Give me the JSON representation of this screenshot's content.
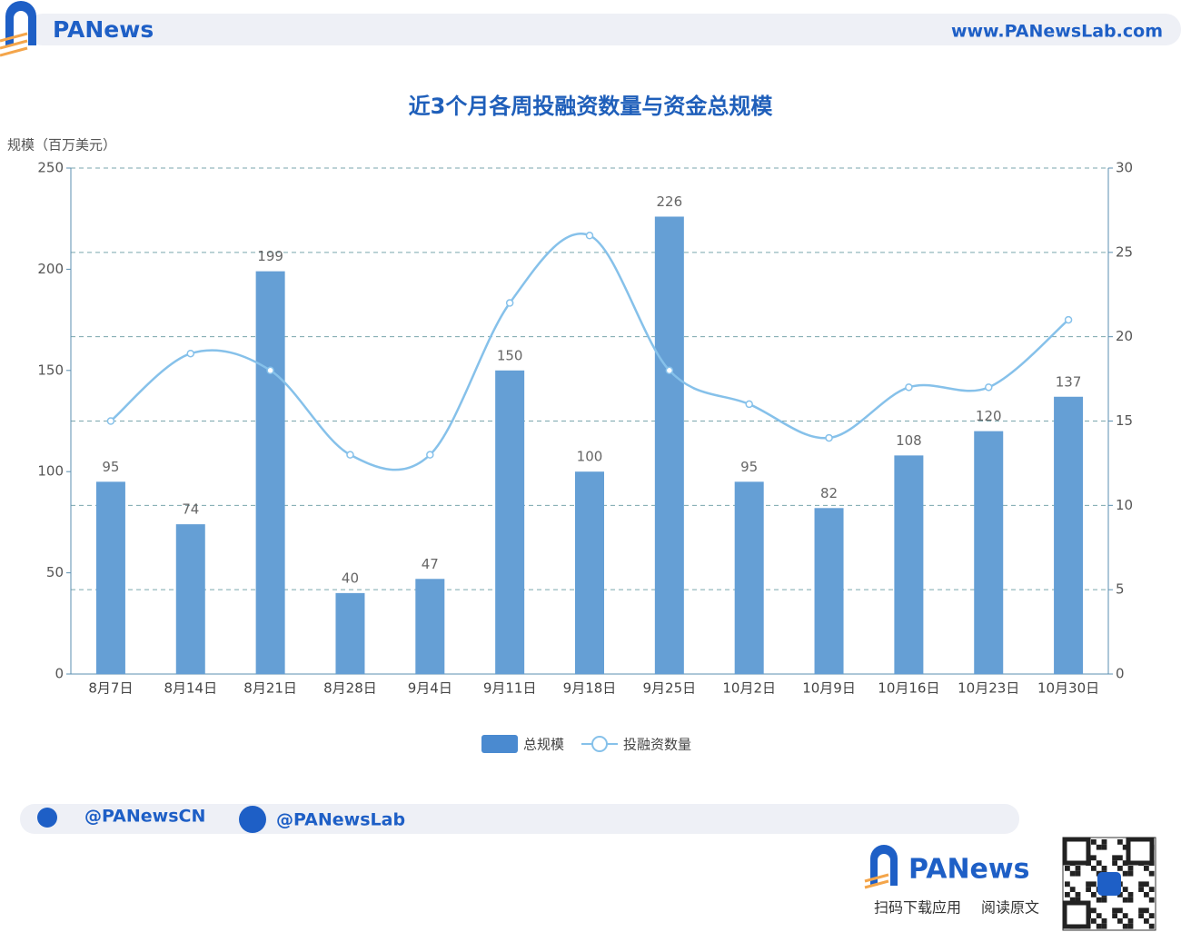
{
  "header": {
    "logo": "PANews",
    "url": "www.PANewsLab.com"
  },
  "chart_data": {
    "type": "bar",
    "title": "近3个月各周投融资数量与资金总规模",
    "y_label": "规模（百万美元）",
    "categories": [
      "8月7日",
      "8月14日",
      "8月21日",
      "8月28日",
      "9月4日",
      "9月11日",
      "9月18日",
      "9月25日",
      "10月2日",
      "10月9日",
      "10月16日",
      "10月23日",
      "10月30日"
    ],
    "series": [
      {
        "name": "总规模",
        "type": "bar",
        "color": "#659fd5",
        "values": [
          95,
          74,
          199,
          40,
          47,
          150,
          100,
          226,
          95,
          82,
          108,
          120,
          137
        ]
      },
      {
        "name": "投融资数量",
        "type": "line",
        "axis": "y2",
        "color": "#86c1ea",
        "values": [
          15,
          19,
          18,
          13,
          13,
          22,
          26,
          18,
          16,
          14,
          17,
          17,
          21
        ]
      }
    ],
    "ylim": [
      0,
      250
    ],
    "yticks": [
      0,
      50,
      100,
      150,
      200,
      250
    ],
    "y2lim": [
      0,
      30
    ],
    "y2ticks": [
      0,
      5,
      10,
      15,
      20,
      25,
      30
    ],
    "grid": true,
    "legend": "bottom"
  },
  "footer": {
    "twitter": "@PANewsCN",
    "facebook": "@PANewsLab",
    "brand": "PANews",
    "caption": [
      "扫码下载应用",
      "阅读原文"
    ]
  }
}
